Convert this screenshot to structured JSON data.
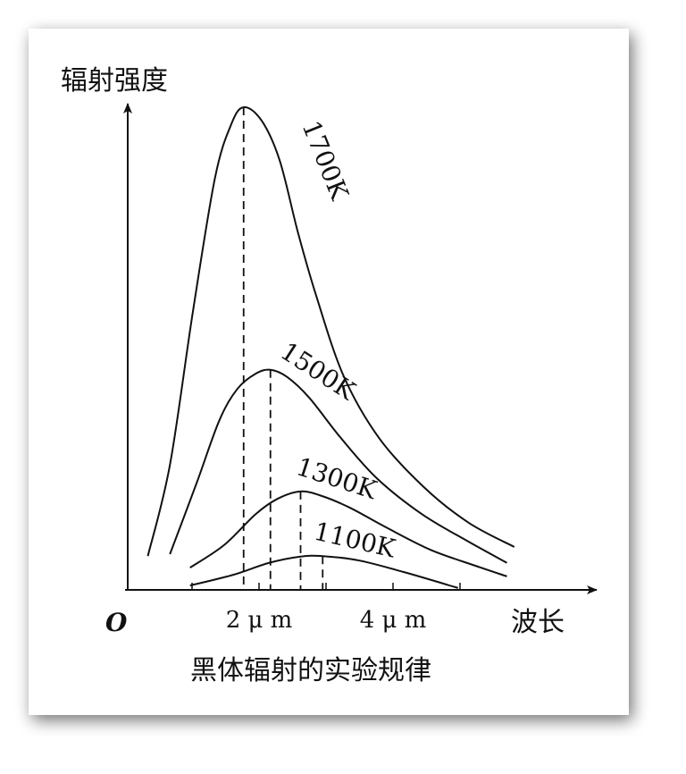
{
  "chart_data": {
    "type": "line",
    "ylabel": "辐射强度",
    "xlabel": "波长",
    "origin_label": "O",
    "caption": "黑体辐射的实验规律",
    "xlim": [
      0,
      7
    ],
    "ylim": [
      0,
      100
    ],
    "xticks": [
      {
        "value": 2,
        "label": "2 μ m"
      },
      {
        "value": 4,
        "label": "4 μ m"
      }
    ],
    "minor_xticks": [
      1,
      3,
      5
    ],
    "color": "#111111",
    "series": [
      {
        "name": "1700K",
        "x": [
          0.34,
          0.67,
          1.01,
          1.34,
          1.58,
          1.77,
          2.04,
          2.31,
          2.58,
          2.85,
          3.26,
          3.79,
          4.46,
          5.13,
          5.81
        ],
        "values": [
          7.0,
          25.9,
          57.4,
          85.2,
          96.3,
          100,
          97.2,
          88.9,
          74.1,
          61.1,
          44.4,
          31.5,
          21.3,
          13.9,
          8.9
        ]
      },
      {
        "name": "1500K",
        "x": [
          0.67,
          1.07,
          1.41,
          1.68,
          1.95,
          2.17,
          2.42,
          2.75,
          3.22,
          3.76,
          4.43,
          5.1,
          5.7
        ],
        "values": [
          7.4,
          22.2,
          35.2,
          41.7,
          44.8,
          45.6,
          44.1,
          39.8,
          31.5,
          23.1,
          15.7,
          10.2,
          5.6
        ]
      },
      {
        "name": "1300K",
        "x": [
          0.97,
          1.48,
          1.95,
          2.28,
          2.62,
          2.95,
          3.36,
          3.89,
          4.56,
          5.23,
          5.7
        ],
        "values": [
          4.6,
          9.3,
          15.7,
          18.9,
          20.4,
          19.4,
          17.0,
          13.0,
          8.3,
          5.0,
          2.8
        ]
      },
      {
        "name": "1100K",
        "x": [
          0.97,
          1.61,
          2.15,
          2.62,
          2.95,
          3.49,
          4.16,
          4.97
        ],
        "values": [
          0.9,
          3.1,
          5.6,
          6.9,
          7.0,
          6.1,
          3.7,
          0.4
        ]
      }
    ]
  }
}
